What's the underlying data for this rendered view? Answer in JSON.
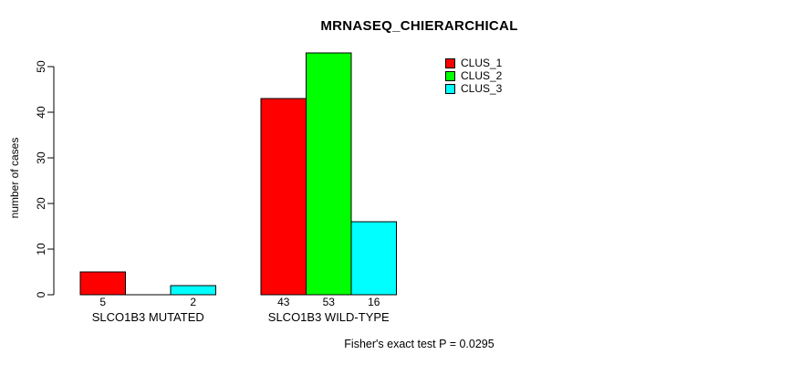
{
  "title": "MRNASEQ_CHIERARCHICAL",
  "ylabel": "number of cases",
  "footnote": "Fisher's exact test P = 0.0295",
  "legend": {
    "position": "top-right",
    "items": [
      {
        "label": "CLUS_1",
        "color": "#FF0000"
      },
      {
        "label": "CLUS_2",
        "color": "#00FF00"
      },
      {
        "label": "CLUS_3",
        "color": "#00FFFF"
      }
    ]
  },
  "colors": {
    "background": "#FFFFFF",
    "text": "#000000",
    "bar_border": "#000000",
    "axis": "#000000"
  },
  "chart_data": {
    "type": "bar",
    "title": "MRNASEQ_CHIERARCHICAL",
    "xlabel": "",
    "ylabel": "number of cases",
    "categories": [
      "SLCO1B3 MUTATED",
      "SLCO1B3 WILD-TYPE"
    ],
    "series": [
      {
        "name": "CLUS_1",
        "color": "#FF0000",
        "values": [
          5,
          43
        ]
      },
      {
        "name": "CLUS_2",
        "color": "#00FF00",
        "values": [
          0,
          53
        ]
      },
      {
        "name": "CLUS_3",
        "color": "#00FFFF",
        "values": [
          2,
          16
        ]
      }
    ],
    "value_labels_shown": [
      [
        "5",
        null,
        "2"
      ],
      [
        "43",
        "53",
        "16"
      ]
    ],
    "yticks": [
      0,
      10,
      20,
      30,
      40,
      50
    ],
    "ylim": [
      0,
      53
    ],
    "grid": false,
    "legend_position": "top-right",
    "annotation": "Fisher's exact test P = 0.0295"
  }
}
